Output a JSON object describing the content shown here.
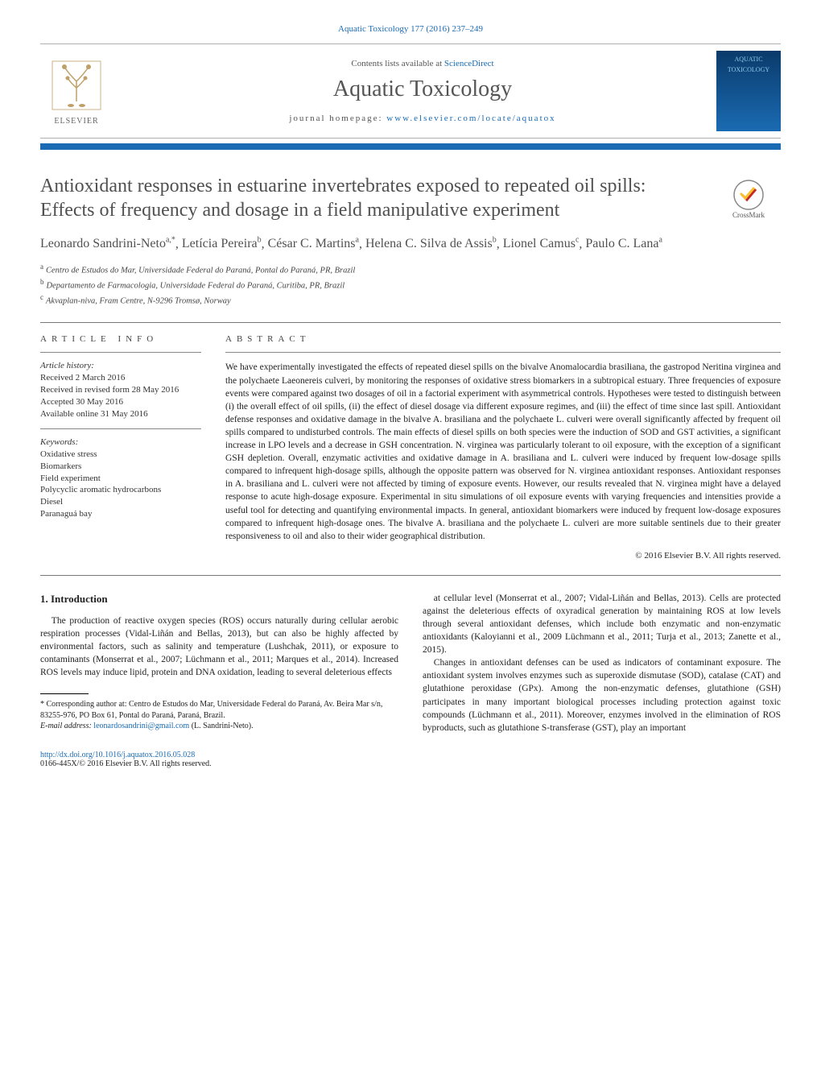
{
  "journalRef": {
    "text": "Aquatic Toxicology 177 (2016) 237–249",
    "link": "Aquatic Toxicology 177 (2016) 237–249"
  },
  "header": {
    "contentsPrefix": "Contents lists available at ",
    "contentsLink": "ScienceDirect",
    "journalName": "Aquatic Toxicology",
    "homepagePrefix": "journal homepage: ",
    "homepageLink": "www.elsevier.com/locate/aquatox",
    "publisher": "ELSEVIER",
    "coverLines": [
      "AQUATIC",
      "TOXICOLOGY"
    ]
  },
  "crossmark": "CrossMark",
  "title": "Antioxidant responses in estuarine invertebrates exposed to repeated oil spills: Effects of frequency and dosage in a field manipulative experiment",
  "authors": [
    {
      "name": "Leonardo Sandrini-Neto",
      "sup": "a,*"
    },
    {
      "name": "Letícia Pereira",
      "sup": "b"
    },
    {
      "name": "César C. Martins",
      "sup": "a"
    },
    {
      "name": "Helena C. Silva de Assis",
      "sup": "b"
    },
    {
      "name": "Lionel Camus",
      "sup": "c"
    },
    {
      "name": "Paulo C. Lana",
      "sup": "a"
    }
  ],
  "affiliations": [
    {
      "sup": "a",
      "text": "Centro de Estudos do Mar, Universidade Federal do Paraná, Pontal do Paraná, PR, Brazil"
    },
    {
      "sup": "b",
      "text": "Departamento de Farmacologia, Universidade Federal do Paraná, Curitiba, PR, Brazil"
    },
    {
      "sup": "c",
      "text": "Akvaplan-niva, Fram Centre, N-9296 Tromsø, Norway"
    }
  ],
  "articleInfo": {
    "heading": "article info",
    "historyHead": "Article history:",
    "history": [
      "Received 2 March 2016",
      "Received in revised form 28 May 2016",
      "Accepted 30 May 2016",
      "Available online 31 May 2016"
    ],
    "keywordsHead": "Keywords:",
    "keywords": [
      "Oxidative stress",
      "Biomarkers",
      "Field experiment",
      "Polycyclic aromatic hydrocarbons",
      "Diesel",
      "Paranaguá bay"
    ]
  },
  "abstract": {
    "heading": "abstract",
    "text": "We have experimentally investigated the effects of repeated diesel spills on the bivalve Anomalocardia brasiliana, the gastropod Neritina virginea and the polychaete Laeonereis culveri, by monitoring the responses of oxidative stress biomarkers in a subtropical estuary. Three frequencies of exposure events were compared against two dosages of oil in a factorial experiment with asymmetrical controls. Hypotheses were tested to distinguish between (i) the overall effect of oil spills, (ii) the effect of diesel dosage via different exposure regimes, and (iii) the effect of time since last spill. Antioxidant defense responses and oxidative damage in the bivalve A. brasiliana and the polychaete L. culveri were overall significantly affected by frequent oil spills compared to undisturbed controls. The main effects of diesel spills on both species were the induction of SOD and GST activities, a significant increase in LPO levels and a decrease in GSH concentration. N. virginea was particularly tolerant to oil exposure, with the exception of a significant GSH depletion. Overall, enzymatic activities and oxidative damage in A. brasiliana and L. culveri were induced by frequent low-dosage spills compared to infrequent high-dosage spills, although the opposite pattern was observed for N. virginea antioxidant responses. Antioxidant responses in A. brasiliana and L. culveri were not affected by timing of exposure events. However, our results revealed that N. virginea might have a delayed response to acute high-dosage exposure. Experimental in situ simulations of oil exposure events with varying frequencies and intensities provide a useful tool for detecting and quantifying environmental impacts. In general, antioxidant biomarkers were induced by frequent low-dosage exposures compared to infrequent high-dosage ones. The bivalve A. brasiliana and the polychaete L. culveri are more suitable sentinels due to their greater responsiveness to oil and also to their wider geographical distribution.",
    "copyright": "© 2016 Elsevier B.V. All rights reserved."
  },
  "body": {
    "sectionHead": "1.  Introduction",
    "leftParas": [
      "The production of reactive oxygen species (ROS) occurs naturally during cellular aerobic respiration processes (Vidal-Liñán and Bellas, 2013), but can also be highly affected by environmental factors, such as salinity and temperature (Lushchak, 2011), or exposure to contaminants (Monserrat et al., 2007; Lüchmann et al., 2011; Marques et al., 2014). Increased ROS levels may induce lipid, protein and DNA oxidation, leading to several deleterious effects"
    ],
    "rightParas": [
      "at cellular level (Monserrat et al., 2007; Vidal-Liñán and Bellas, 2013). Cells are protected against the deleterious effects of oxyradical generation by maintaining ROS at low levels through several antioxidant defenses, which include both enzymatic and non-enzymatic antioxidants (Kaloyianni et al., 2009 Lüchmann et al., 2011; Turja et al., 2013; Zanette et al., 2015).",
      "Changes in antioxidant defenses can be used as indicators of contaminant exposure. The antioxidant system involves enzymes such as superoxide dismutase (SOD), catalase (CAT) and glutathione peroxidase (GPx). Among the non-enzymatic defenses, glutathione (GSH) participates in many important biological processes including protection against toxic compounds (Lüchmann et al., 2011). Moreover, enzymes involved in the elimination of ROS byproducts, such as glutathione S-transferase (GST), play an important"
    ]
  },
  "footnote": {
    "star": "*",
    "textPrefix": "Corresponding author at: Centro de Estudos do Mar, Universidade Federal do Paraná, Av. Beira Mar s/n, 83255-976, PO Box 61, Pontal do Paraná, Paraná, Brazil.",
    "emailLabel": "E-mail address:",
    "email": "leonardosandrini@gmail.com",
    "emailOwner": "(L. Sandrini-Neto)."
  },
  "footer": {
    "doi": "http://dx.doi.org/10.1016/j.aquatox.2016.05.028",
    "issn": "0166-445X/© 2016 Elsevier B.V. All rights reserved."
  },
  "colors": {
    "accent": "#1a6bb3",
    "text": "#222222",
    "titleGray": "#505050",
    "rule": "#777777"
  }
}
